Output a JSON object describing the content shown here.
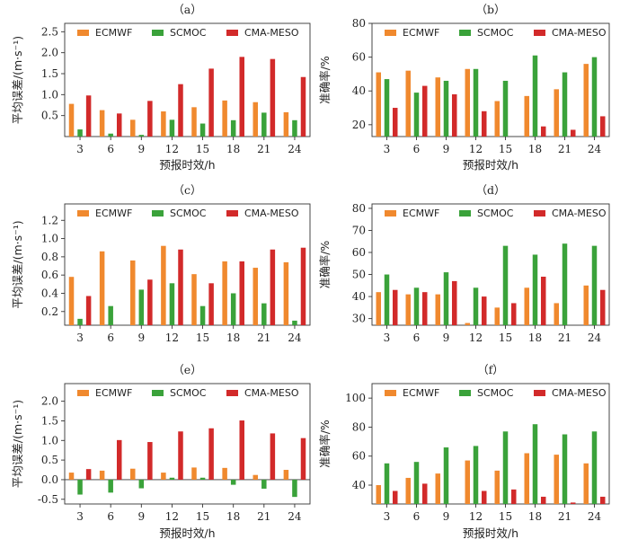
{
  "colors": {
    "ECMWF": "#f0892e",
    "SCMOC": "#3aa23a",
    "CMA-MESO": "#d22a2a"
  },
  "chart_data": [
    {
      "panel": "（a）",
      "type": "bar",
      "xlabel": "预报时效/h",
      "ylabel": "平均误差/(m·s⁻¹)",
      "categories": [
        "3",
        "6",
        "9",
        "12",
        "15",
        "18",
        "21",
        "24"
      ],
      "ylim": [
        0,
        2.7
      ],
      "yticks": [
        "0.5",
        "1.0",
        "1.5",
        "2.0",
        "2.5"
      ],
      "legend": "top",
      "series": [
        {
          "name": "ECMWF",
          "values": [
            0.78,
            0.63,
            0.4,
            0.6,
            0.7,
            0.86,
            0.82,
            0.58
          ]
        },
        {
          "name": "SCMOC",
          "values": [
            0.17,
            0.07,
            0.04,
            0.4,
            0.31,
            0.39,
            0.57,
            0.39
          ]
        },
        {
          "name": "CMA-MESO",
          "values": [
            0.98,
            0.55,
            0.85,
            1.25,
            1.62,
            1.9,
            1.85,
            1.42
          ]
        }
      ]
    },
    {
      "panel": "（b）",
      "type": "bar",
      "xlabel": "预报时效/h",
      "ylabel": "准确率/%",
      "categories": [
        "3",
        "6",
        "9",
        "12",
        "15",
        "18",
        "21",
        "24"
      ],
      "ylim": [
        13,
        80
      ],
      "yticks": [
        "20",
        "40",
        "60",
        "80"
      ],
      "legend": "top",
      "series": [
        {
          "name": "ECMWF",
          "values": [
            51,
            52,
            48,
            53,
            34,
            37,
            41,
            56
          ]
        },
        {
          "name": "SCMOC",
          "values": [
            47,
            39,
            46,
            53,
            46,
            61,
            51,
            60
          ]
        },
        {
          "name": "CMA-MESO",
          "values": [
            30,
            43,
            38,
            28,
            null,
            19,
            17,
            25
          ]
        }
      ]
    },
    {
      "panel": "（c）",
      "type": "bar",
      "xlabel": "",
      "ylabel": "平均误差/(m·s⁻¹)",
      "categories": [
        "3",
        "6",
        "9",
        "12",
        "15",
        "18",
        "21",
        "24"
      ],
      "ylim": [
        0.05,
        1.38
      ],
      "yticks": [
        "0.2",
        "0.4",
        "0.6",
        "0.8",
        "1.0",
        "1.2"
      ],
      "legend": "top",
      "series": [
        {
          "name": "ECMWF",
          "values": [
            0.58,
            0.86,
            0.76,
            0.92,
            0.61,
            0.75,
            0.68,
            0.74
          ]
        },
        {
          "name": "SCMOC",
          "values": [
            0.12,
            0.26,
            0.44,
            0.51,
            0.26,
            0.4,
            0.29,
            0.1
          ]
        },
        {
          "name": "CMA-MESO",
          "values": [
            0.37,
            null,
            0.55,
            0.88,
            0.51,
            0.75,
            0.88,
            0.9
          ]
        }
      ]
    },
    {
      "panel": "（d）",
      "type": "bar",
      "xlabel": "",
      "ylabel": "准确率/%",
      "categories": [
        "3",
        "6",
        "9",
        "12",
        "15",
        "18",
        "21",
        "24"
      ],
      "ylim": [
        27,
        82
      ],
      "yticks": [
        "30",
        "40",
        "50",
        "60",
        "70",
        "80"
      ],
      "legend": "top",
      "series": [
        {
          "name": "ECMWF",
          "values": [
            42,
            41,
            41,
            28,
            35,
            44,
            37,
            45
          ]
        },
        {
          "name": "SCMOC",
          "values": [
            50,
            44,
            51,
            44,
            63,
            59,
            64,
            63
          ]
        },
        {
          "name": "CMA-MESO",
          "values": [
            43,
            42,
            47,
            40,
            37,
            49,
            null,
            43
          ]
        }
      ]
    },
    {
      "panel": "（e）",
      "type": "bar",
      "xlabel": "预报时效/h",
      "ylabel": "平均误差/(m·s⁻¹)",
      "categories": [
        "3",
        "6",
        "9",
        "12",
        "15",
        "18",
        "21",
        "24"
      ],
      "ylim": [
        -0.62,
        2.45
      ],
      "yticks": [
        "-0.5",
        "0.0",
        "0.5",
        "1.0",
        "1.5",
        "2.0"
      ],
      "legend": "top",
      "series": [
        {
          "name": "ECMWF",
          "values": [
            0.18,
            0.23,
            0.28,
            0.18,
            0.31,
            0.3,
            0.12,
            0.25
          ]
        },
        {
          "name": "SCMOC",
          "values": [
            -0.38,
            -0.33,
            -0.22,
            0.05,
            0.05,
            -0.13,
            -0.23,
            -0.44
          ]
        },
        {
          "name": "CMA-MESO",
          "values": [
            0.27,
            1.01,
            0.96,
            1.23,
            1.31,
            1.51,
            1.18,
            1.06
          ]
        }
      ]
    },
    {
      "panel": "（f）",
      "type": "bar",
      "xlabel": "预报时效/h",
      "ylabel": "准确率/%",
      "categories": [
        "3",
        "6",
        "9",
        "12",
        "15",
        "18",
        "21",
        "24"
      ],
      "ylim": [
        27,
        110
      ],
      "yticks": [
        "40",
        "60",
        "80",
        "100"
      ],
      "legend": "top",
      "series": [
        {
          "name": "ECMWF",
          "values": [
            40,
            45,
            48,
            57,
            50,
            62,
            61,
            55
          ]
        },
        {
          "name": "SCMOC",
          "values": [
            55,
            56,
            66,
            67,
            77,
            82,
            75,
            77
          ]
        },
        {
          "name": "CMA-MESO",
          "values": [
            36,
            41,
            null,
            36,
            37,
            32,
            28,
            32
          ]
        }
      ]
    }
  ]
}
